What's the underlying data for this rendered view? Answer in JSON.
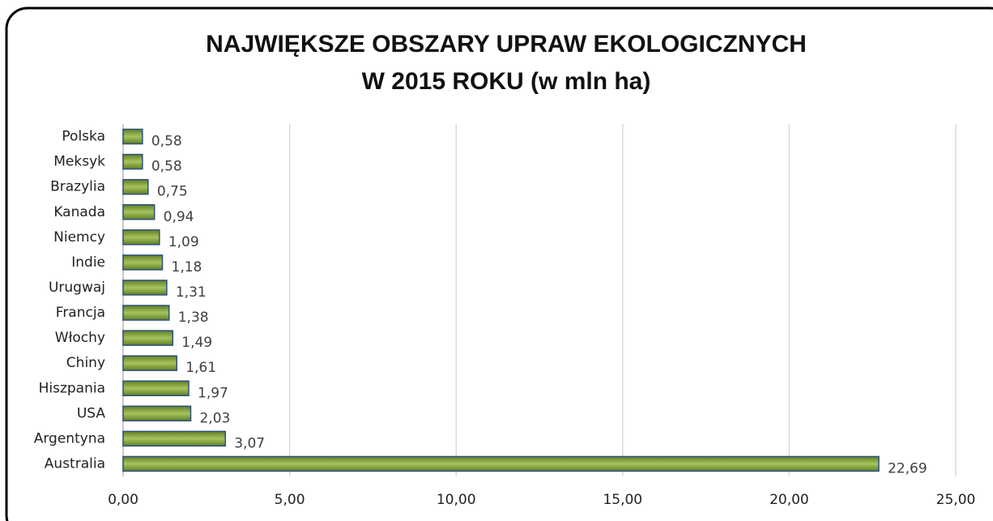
{
  "chart_data": {
    "type": "bar",
    "orientation": "horizontal",
    "title": [
      "NAJWIĘKSZE OBSZARY UPRAW EKOLOGICZNYCH",
      "W 2015 ROKU (w mln ha)"
    ],
    "categories": [
      "Polska",
      "Meksyk",
      "Brazylia",
      "Kanada",
      "Niemcy",
      "Indie",
      "Urugwaj",
      "Francja",
      "Włochy",
      "Chiny",
      "Hiszpania",
      "USA",
      "Argentyna",
      "Australia"
    ],
    "values": [
      0.58,
      0.58,
      0.75,
      0.94,
      1.09,
      1.18,
      1.31,
      1.38,
      1.49,
      1.61,
      1.97,
      2.03,
      3.07,
      22.69
    ],
    "value_labels": [
      "0,58",
      "0,58",
      "0,75",
      "0,94",
      "1,09",
      "1,18",
      "1,31",
      "1,38",
      "1,49",
      "1,61",
      "1,97",
      "2,03",
      "3,07",
      "22,69"
    ],
    "color": "#7a9b36",
    "edge_color": "#2f4f7f",
    "xlim": [
      0,
      25
    ],
    "xticks": [
      {
        "value": 0,
        "label": "0,00"
      },
      {
        "value": 5,
        "label": "5,00"
      },
      {
        "value": 10,
        "label": "10,00"
      },
      {
        "value": 15,
        "label": "15,00"
      },
      {
        "value": 20,
        "label": "20,00"
      },
      {
        "value": 25,
        "label": "25,00"
      }
    ],
    "grid": true
  }
}
